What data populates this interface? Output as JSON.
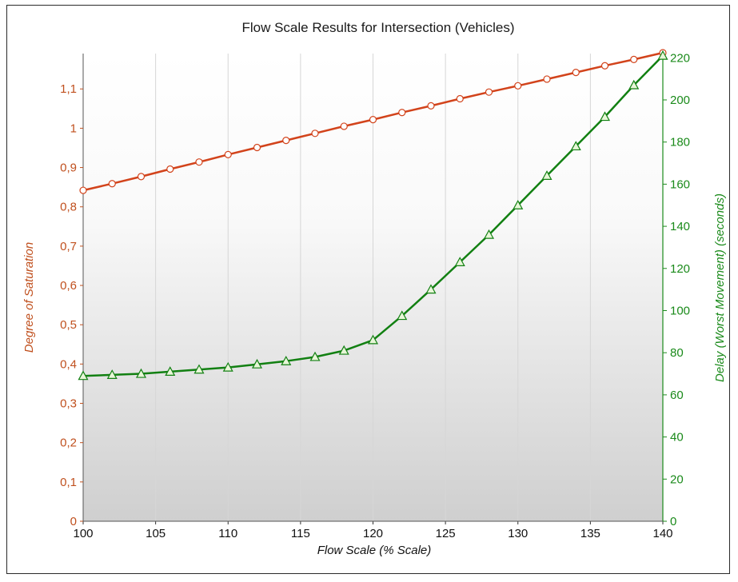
{
  "chart_data": {
    "type": "line",
    "title": "Flow Scale Results for Intersection (Vehicles)",
    "xlabel": "Flow Scale (% Scale)",
    "ylabel_left": "Degree of Saturation",
    "ylabel_right": "Delay (Worst Movement) (seconds)",
    "xlim": [
      100,
      140
    ],
    "ylim_left": [
      0,
      1.19
    ],
    "ylim_right": [
      0,
      222
    ],
    "x_ticks": [
      "100",
      "105",
      "110",
      "115",
      "120",
      "125",
      "130",
      "135",
      "140"
    ],
    "y_left_ticks": [
      {
        "value": 0,
        "label": "0"
      },
      {
        "value": 0.1,
        "label": "0,1"
      },
      {
        "value": 0.2,
        "label": "0,2"
      },
      {
        "value": 0.3,
        "label": "0,3"
      },
      {
        "value": 0.4,
        "label": "0,4"
      },
      {
        "value": 0.5,
        "label": "0,5"
      },
      {
        "value": 0.6,
        "label": "0,6"
      },
      {
        "value": 0.7,
        "label": "0,7"
      },
      {
        "value": 0.8,
        "label": "0,8"
      },
      {
        "value": 0.9,
        "label": "0,9"
      },
      {
        "value": 1.0,
        "label": "1"
      },
      {
        "value": 1.1,
        "label": "1,1"
      }
    ],
    "y_right_ticks": [
      "0",
      "20",
      "40",
      "60",
      "80",
      "100",
      "120",
      "140",
      "160",
      "180",
      "200",
      "220"
    ],
    "grid": "vertical",
    "x": [
      100,
      102,
      104,
      106,
      108,
      110,
      112,
      114,
      116,
      118,
      120,
      122,
      124,
      126,
      128,
      130,
      132,
      134,
      136,
      138,
      140
    ],
    "series": [
      {
        "axis": "left",
        "marker": "circle",
        "color": "#d2431b",
        "values": [
          0.842,
          0.859,
          0.877,
          0.896,
          0.914,
          0.933,
          0.951,
          0.969,
          0.987,
          1.005,
          1.022,
          1.04,
          1.057,
          1.075,
          1.092,
          1.108,
          1.125,
          1.142,
          1.159,
          1.175,
          1.192
        ]
      },
      {
        "axis": "right",
        "marker": "triangle",
        "color": "#128012",
        "values": [
          69,
          69.5,
          70,
          71,
          72,
          73,
          74.5,
          76,
          78,
          81,
          86,
          97.5,
          110,
          123,
          136,
          150,
          164,
          178,
          192,
          207,
          221
        ]
      }
    ]
  }
}
